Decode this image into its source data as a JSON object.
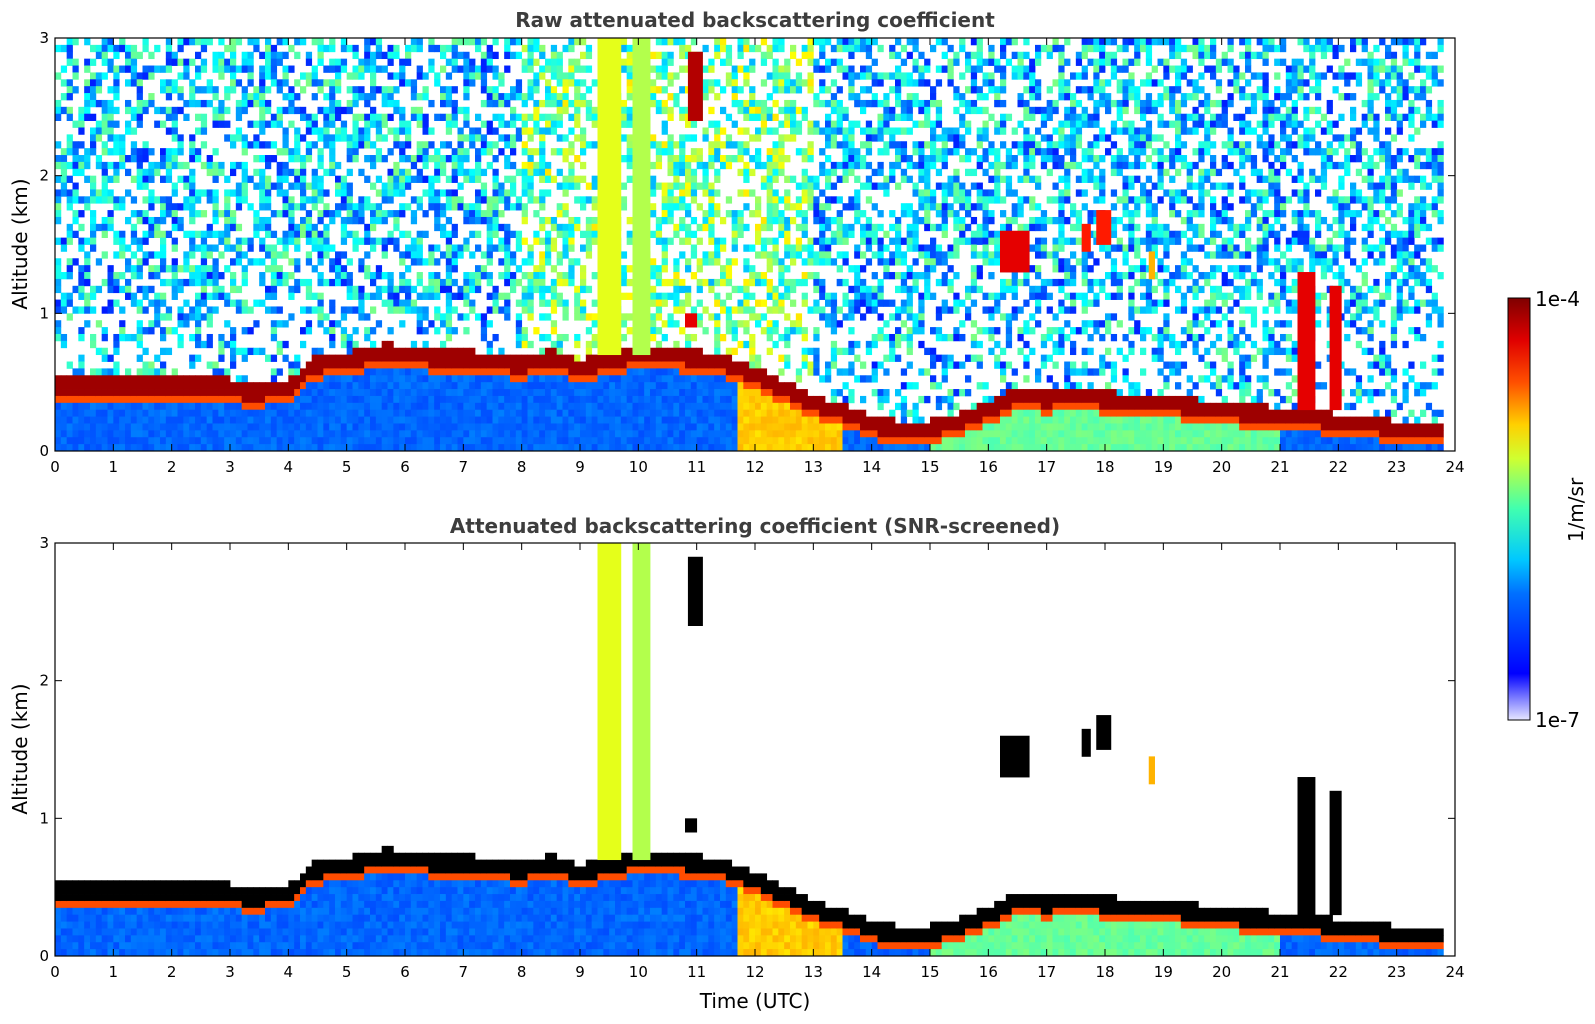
{
  "chart_data": [
    {
      "type": "heatmap",
      "title": "Raw attenuated backscattering coefficient",
      "xlabel": "",
      "ylabel": "Altitude (km)",
      "xlim": [
        0,
        24
      ],
      "ylim": [
        0,
        3
      ],
      "x_ticks": [
        "0",
        "1",
        "2",
        "3",
        "4",
        "5",
        "6",
        "7",
        "8",
        "9",
        "10",
        "11",
        "12",
        "13",
        "14",
        "15",
        "16",
        "17",
        "18",
        "19",
        "20",
        "21",
        "22",
        "23",
        "24"
      ],
      "y_ticks": [
        "0",
        "1",
        "2",
        "3"
      ],
      "grid": false,
      "boundary_layer_top_km": [
        [
          0,
          0.47
        ],
        [
          1,
          0.47
        ],
        [
          2,
          0.47
        ],
        [
          3,
          0.47
        ],
        [
          3.3,
          0.42
        ],
        [
          4,
          0.45
        ],
        [
          4.4,
          0.62
        ],
        [
          5,
          0.66
        ],
        [
          5.7,
          0.72
        ],
        [
          6.5,
          0.68
        ],
        [
          7.5,
          0.66
        ],
        [
          8,
          0.62
        ],
        [
          8.5,
          0.68
        ],
        [
          9,
          0.6
        ],
        [
          9.5,
          0.66
        ],
        [
          10,
          0.7
        ],
        [
          10.5,
          0.7
        ],
        [
          11,
          0.67
        ],
        [
          11.5,
          0.64
        ],
        [
          12,
          0.55
        ],
        [
          12.5,
          0.45
        ],
        [
          13,
          0.35
        ],
        [
          13.5,
          0.28
        ],
        [
          14,
          0.2
        ],
        [
          14.5,
          0.15
        ],
        [
          15,
          0.16
        ],
        [
          15.5,
          0.22
        ],
        [
          16,
          0.3
        ],
        [
          16.5,
          0.4
        ],
        [
          17,
          0.38
        ],
        [
          17.5,
          0.4
        ],
        [
          18,
          0.38
        ],
        [
          18.5,
          0.35
        ],
        [
          19,
          0.35
        ],
        [
          19.5,
          0.32
        ],
        [
          20,
          0.3
        ],
        [
          20.5,
          0.27
        ],
        [
          21,
          0.26
        ],
        [
          21.5,
          0.26
        ],
        [
          22,
          0.2
        ],
        [
          22.5,
          0.2
        ],
        [
          23,
          0.16
        ],
        [
          23.8,
          0.16
        ]
      ],
      "cloud_patches": [
        {
          "t": [
            10.85,
            11.1
          ],
          "alt_km": [
            2.4,
            2.9
          ],
          "level": 0.95
        },
        {
          "t": [
            16.2,
            16.7
          ],
          "alt_km": [
            1.3,
            1.6
          ],
          "level": 0.9
        },
        {
          "t": [
            17.6,
            17.75
          ],
          "alt_km": [
            1.45,
            1.65
          ],
          "level": 0.85
        },
        {
          "t": [
            17.85,
            18.1
          ],
          "alt_km": [
            1.5,
            1.75
          ],
          "level": 0.85
        },
        {
          "t": [
            18.75,
            18.85
          ],
          "alt_km": [
            1.25,
            1.45
          ],
          "level": 0.7
        },
        {
          "t": [
            10.8,
            11.0
          ],
          "alt_km": [
            0.9,
            1.0
          ],
          "level": 0.9
        },
        {
          "t": [
            21.3,
            21.6
          ],
          "alt_km": [
            0.3,
            1.3
          ],
          "level": 0.9
        },
        {
          "t": [
            21.85,
            22.05
          ],
          "alt_km": [
            0.3,
            1.2
          ],
          "level": 0.9
        }
      ],
      "aerosol_plumes": [
        {
          "t": [
            9.3,
            9.7
          ],
          "alt_km": [
            0.7,
            3.0
          ],
          "level": 0.6
        },
        {
          "t": [
            9.9,
            10.2
          ],
          "alt_km": [
            0.7,
            3.0
          ],
          "level": 0.55
        }
      ]
    },
    {
      "type": "heatmap",
      "title": "Attenuated backscattering coefficient (SNR-screened)",
      "xlabel": "Time (UTC)",
      "ylabel": "Altitude (km)",
      "xlim": [
        0,
        24
      ],
      "ylim": [
        0,
        3
      ],
      "x_ticks": [
        "0",
        "1",
        "2",
        "3",
        "4",
        "5",
        "6",
        "7",
        "8",
        "9",
        "10",
        "11",
        "12",
        "13",
        "14",
        "15",
        "16",
        "17",
        "18",
        "19",
        "20",
        "21",
        "22",
        "23",
        "24"
      ],
      "y_ticks": [
        "0",
        "1",
        "2",
        "3"
      ],
      "grid": false
    }
  ],
  "colorbar": {
    "max_label": "1e-4",
    "min_label": "1e-7",
    "unit_label": "1/m/sr",
    "colormap": "jet",
    "min_color": "#e6e6ff",
    "max_color": "#7f0000"
  }
}
